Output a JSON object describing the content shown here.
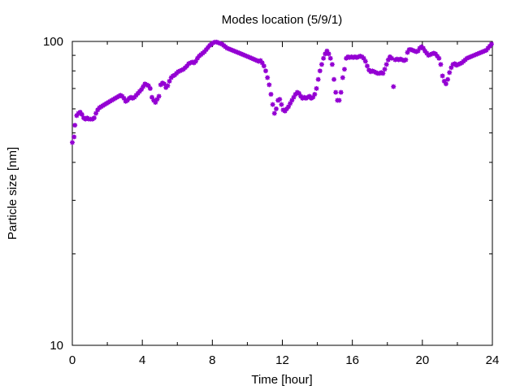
{
  "chart_data": {
    "type": "scatter",
    "title": "Modes location (5/9/1)",
    "xlabel": "Time [hour]",
    "ylabel": "Particle size [nm]",
    "xlim": [
      0,
      24
    ],
    "ylim": [
      10,
      100
    ],
    "y_scale": "log",
    "grid": false,
    "legend": "none",
    "marker_color": "#9400d3",
    "x_ticks": [
      "0",
      "4",
      "8",
      "12",
      "16",
      "20",
      "24"
    ],
    "x_tick_values": [
      0,
      4,
      8,
      12,
      16,
      20,
      24
    ],
    "y_ticks": [
      "10",
      "100"
    ],
    "y_tick_values": [
      10,
      100
    ],
    "series": [
      {
        "points": [
          [
            0.0,
            46.5
          ],
          [
            0.1,
            48.5
          ],
          [
            0.15,
            53
          ],
          [
            0.25,
            57
          ],
          [
            0.35,
            58
          ],
          [
            0.45,
            58.5
          ],
          [
            0.55,
            57.5
          ],
          [
            0.65,
            56
          ],
          [
            0.75,
            55.5
          ],
          [
            0.85,
            56
          ],
          [
            0.95,
            55.5
          ],
          [
            1.05,
            55.5
          ],
          [
            1.15,
            55.5
          ],
          [
            1.25,
            56
          ],
          [
            1.35,
            58
          ],
          [
            1.45,
            59.5
          ],
          [
            1.55,
            60.5
          ],
          [
            1.65,
            61
          ],
          [
            1.75,
            61.5
          ],
          [
            1.85,
            62
          ],
          [
            1.95,
            62.5
          ],
          [
            2.05,
            63
          ],
          [
            2.15,
            63.5
          ],
          [
            2.25,
            64
          ],
          [
            2.35,
            64.5
          ],
          [
            2.45,
            65
          ],
          [
            2.55,
            65.5
          ],
          [
            2.65,
            66
          ],
          [
            2.75,
            66.5
          ],
          [
            2.85,
            66
          ],
          [
            2.95,
            65
          ],
          [
            3.05,
            63.5
          ],
          [
            3.15,
            64
          ],
          [
            3.25,
            65
          ],
          [
            3.35,
            65.5
          ],
          [
            3.45,
            65
          ],
          [
            3.55,
            65.5
          ],
          [
            3.65,
            66.5
          ],
          [
            3.75,
            67.5
          ],
          [
            3.85,
            68.5
          ],
          [
            3.95,
            69.5
          ],
          [
            4.05,
            71
          ],
          [
            4.15,
            72.5
          ],
          [
            4.25,
            72
          ],
          [
            4.35,
            71.5
          ],
          [
            4.45,
            70
          ],
          [
            4.55,
            65.5
          ],
          [
            4.65,
            64
          ],
          [
            4.75,
            63
          ],
          [
            4.85,
            64.5
          ],
          [
            4.95,
            66
          ],
          [
            5.05,
            72
          ],
          [
            5.15,
            73
          ],
          [
            5.25,
            72.5
          ],
          [
            5.35,
            70.5
          ],
          [
            5.45,
            71.5
          ],
          [
            5.55,
            74
          ],
          [
            5.65,
            76
          ],
          [
            5.75,
            77
          ],
          [
            5.85,
            77.5
          ],
          [
            5.95,
            78.5
          ],
          [
            6.05,
            79.5
          ],
          [
            6.15,
            80
          ],
          [
            6.25,
            80.5
          ],
          [
            6.35,
            81
          ],
          [
            6.45,
            82
          ],
          [
            6.55,
            83
          ],
          [
            6.65,
            84.5
          ],
          [
            6.75,
            85
          ],
          [
            6.85,
            85.5
          ],
          [
            6.95,
            85
          ],
          [
            7.05,
            86
          ],
          [
            7.15,
            88
          ],
          [
            7.25,
            89.5
          ],
          [
            7.35,
            90.5
          ],
          [
            7.45,
            91.5
          ],
          [
            7.55,
            92.5
          ],
          [
            7.65,
            94
          ],
          [
            7.75,
            95.5
          ],
          [
            7.85,
            97
          ],
          [
            7.95,
            98
          ],
          [
            8.05,
            99
          ],
          [
            8.15,
            99.5
          ],
          [
            8.25,
            99.5
          ],
          [
            8.35,
            99
          ],
          [
            8.45,
            98.5
          ],
          [
            8.55,
            98
          ],
          [
            8.65,
            97
          ],
          [
            8.75,
            96
          ],
          [
            8.85,
            95
          ],
          [
            8.95,
            94.5
          ],
          [
            9.05,
            94
          ],
          [
            9.15,
            93.5
          ],
          [
            9.25,
            93
          ],
          [
            9.35,
            92.5
          ],
          [
            9.45,
            92
          ],
          [
            9.55,
            91.5
          ],
          [
            9.65,
            91
          ],
          [
            9.75,
            90.5
          ],
          [
            9.85,
            90
          ],
          [
            9.95,
            89.5
          ],
          [
            10.05,
            89
          ],
          [
            10.15,
            88.5
          ],
          [
            10.25,
            88
          ],
          [
            10.35,
            87.5
          ],
          [
            10.45,
            87
          ],
          [
            10.55,
            86.5
          ],
          [
            10.65,
            86
          ],
          [
            10.75,
            86.5
          ],
          [
            10.85,
            85
          ],
          [
            10.95,
            83
          ],
          [
            11.05,
            80
          ],
          [
            11.15,
            76
          ],
          [
            11.25,
            72
          ],
          [
            11.35,
            67
          ],
          [
            11.45,
            62
          ],
          [
            11.55,
            58
          ],
          [
            11.65,
            60
          ],
          [
            11.75,
            64
          ],
          [
            11.85,
            64.5
          ],
          [
            11.95,
            62
          ],
          [
            12.05,
            59.5
          ],
          [
            12.15,
            59
          ],
          [
            12.25,
            60
          ],
          [
            12.35,
            61
          ],
          [
            12.45,
            62.5
          ],
          [
            12.55,
            64
          ],
          [
            12.65,
            65.5
          ],
          [
            12.75,
            67
          ],
          [
            12.85,
            68
          ],
          [
            12.95,
            67.5
          ],
          [
            13.05,
            66
          ],
          [
            13.15,
            65
          ],
          [
            13.25,
            65.5
          ],
          [
            13.35,
            65
          ],
          [
            13.45,
            65.5
          ],
          [
            13.55,
            66
          ],
          [
            13.65,
            65
          ],
          [
            13.75,
            65.5
          ],
          [
            13.85,
            67
          ],
          [
            13.95,
            70
          ],
          [
            14.05,
            75
          ],
          [
            14.15,
            80
          ],
          [
            14.25,
            84
          ],
          [
            14.35,
            88
          ],
          [
            14.45,
            91
          ],
          [
            14.55,
            93
          ],
          [
            14.65,
            91
          ],
          [
            14.75,
            88
          ],
          [
            14.85,
            84
          ],
          [
            14.95,
            75
          ],
          [
            15.05,
            68
          ],
          [
            15.15,
            64
          ],
          [
            15.25,
            64
          ],
          [
            15.35,
            68
          ],
          [
            15.45,
            76
          ],
          [
            15.55,
            81
          ],
          [
            15.65,
            88
          ],
          [
            15.75,
            89
          ],
          [
            15.85,
            88.5
          ],
          [
            15.95,
            89
          ],
          [
            16.05,
            88.5
          ],
          [
            16.15,
            89
          ],
          [
            16.25,
            88.5
          ],
          [
            16.35,
            89
          ],
          [
            16.45,
            89.5
          ],
          [
            16.55,
            89
          ],
          [
            16.65,
            88
          ],
          [
            16.75,
            86
          ],
          [
            16.85,
            83
          ],
          [
            16.95,
            80.5
          ],
          [
            17.05,
            79.5
          ],
          [
            17.15,
            80
          ],
          [
            17.25,
            79.5
          ],
          [
            17.35,
            79
          ],
          [
            17.45,
            78.5
          ],
          [
            17.55,
            78.5
          ],
          [
            17.65,
            79
          ],
          [
            17.75,
            78.5
          ],
          [
            17.85,
            81
          ],
          [
            17.95,
            84
          ],
          [
            18.05,
            87
          ],
          [
            18.15,
            89
          ],
          [
            18.25,
            88
          ],
          [
            18.35,
            71
          ],
          [
            18.45,
            87
          ],
          [
            18.55,
            87.5
          ],
          [
            18.65,
            87
          ],
          [
            18.75,
            87.5
          ],
          [
            18.85,
            87
          ],
          [
            18.95,
            86.5
          ],
          [
            19.05,
            87
          ],
          [
            19.15,
            92
          ],
          [
            19.25,
            94
          ],
          [
            19.35,
            94
          ],
          [
            19.45,
            93.5
          ],
          [
            19.55,
            93
          ],
          [
            19.65,
            92.5
          ],
          [
            19.75,
            93
          ],
          [
            19.85,
            95
          ],
          [
            19.95,
            96
          ],
          [
            20.05,
            95
          ],
          [
            20.15,
            93
          ],
          [
            20.25,
            91.5
          ],
          [
            20.35,
            90
          ],
          [
            20.45,
            90.5
          ],
          [
            20.55,
            91
          ],
          [
            20.65,
            91.5
          ],
          [
            20.75,
            91
          ],
          [
            20.85,
            89.5
          ],
          [
            20.95,
            88
          ],
          [
            21.05,
            84
          ],
          [
            21.15,
            77
          ],
          [
            21.25,
            74
          ],
          [
            21.35,
            72.5
          ],
          [
            21.45,
            75
          ],
          [
            21.55,
            79
          ],
          [
            21.65,
            82
          ],
          [
            21.75,
            84
          ],
          [
            21.85,
            84.5
          ],
          [
            21.95,
            83.5
          ],
          [
            22.05,
            84
          ],
          [
            22.15,
            84.5
          ],
          [
            22.25,
            85
          ],
          [
            22.35,
            86
          ],
          [
            22.45,
            87
          ],
          [
            22.55,
            88
          ],
          [
            22.65,
            88.5
          ],
          [
            22.75,
            89
          ],
          [
            22.85,
            89.5
          ],
          [
            22.95,
            90
          ],
          [
            23.05,
            90.5
          ],
          [
            23.15,
            91
          ],
          [
            23.25,
            91.5
          ],
          [
            23.35,
            92
          ],
          [
            23.45,
            92.5
          ],
          [
            23.55,
            93
          ],
          [
            23.65,
            93.5
          ],
          [
            23.75,
            95
          ],
          [
            23.85,
            96.5
          ],
          [
            23.95,
            98
          ]
        ]
      }
    ]
  }
}
